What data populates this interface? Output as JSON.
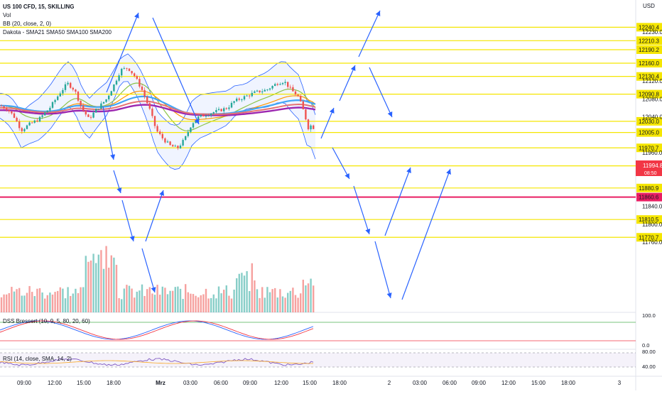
{
  "header": {
    "symbol": "US 100 CFD, 15, SKILLING",
    "vol_label": "Vol",
    "bb_label": "BB (20, close, 2, 0)",
    "sma_label": "Dakota - SMA21 SMA50 SMA100 SMA200",
    "currency": "USD"
  },
  "chart_data": {
    "type": "candlestick",
    "price_levels": [
      12240.4,
      12210.3,
      12190.2,
      12160.0,
      12130.4,
      12090.8,
      12030.0,
      12005.0,
      11970.7,
      11930.4,
      11880.9,
      11810.5,
      11770.7
    ],
    "red_level": 11860.6,
    "current_price": "11994.8",
    "countdown": "08:50",
    "y_ticks": [
      "12230.0",
      "12120.0",
      "12080.0",
      "12040.0",
      "11960.0",
      "11840.0",
      "11800.0",
      "11760.0"
    ],
    "x_ticks": [
      "09:00",
      "12:00",
      "15:00",
      "18:00",
      "Mrz",
      "03:00",
      "06:00",
      "09:00",
      "12:00",
      "15:00",
      "18:00",
      "2",
      "03:00",
      "06:00",
      "09:00",
      "12:00",
      "15:00",
      "18:00",
      "3"
    ],
    "dss": {
      "label": "DSS Bressert (10, 9, 5, 80, 20, 60)",
      "levels": [
        "100.0",
        "0.0"
      ]
    },
    "rsi": {
      "label": "RSI (14, close, SMA, 14, 2)",
      "levels": [
        "80.00",
        "40.00"
      ]
    },
    "colors": {
      "up": "#26a69a",
      "down": "#ef5350",
      "level": "#f5e600",
      "red_level": "#e91e63",
      "arrow": "#2962ff",
      "bb": "#2962ff"
    }
  }
}
